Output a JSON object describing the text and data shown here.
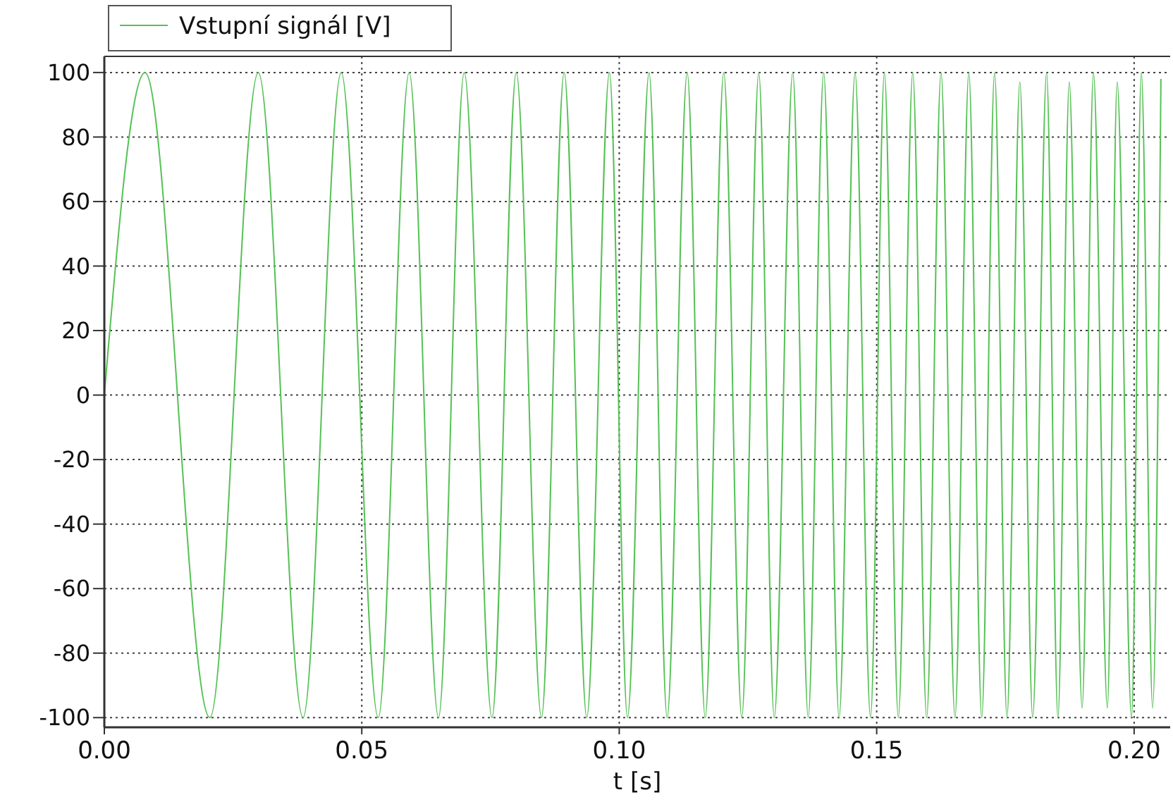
{
  "chart_data": {
    "type": "line",
    "xlabel": "t [s]",
    "xlim": [
      0,
      0.207
    ],
    "ylim": [
      -103,
      105
    ],
    "xticks": [
      {
        "value": 0,
        "label": "0.00"
      },
      {
        "value": 0.05,
        "label": "0.05"
      },
      {
        "value": 0.1,
        "label": "0.10"
      },
      {
        "value": 0.15,
        "label": "0.15"
      },
      {
        "value": 0.2,
        "label": "0.20"
      }
    ],
    "yticks": [
      -100,
      -80,
      -60,
      -40,
      -20,
      0,
      20,
      40,
      60,
      80,
      100
    ],
    "grid": true,
    "legend": "top left",
    "marker": "none",
    "line_style": "solid",
    "series": [
      {
        "name": "Vstupní signál [V]",
        "color": "#55c155",
        "x": [
          0,
          0.0079,
          0.0205,
          0.0299,
          0.0386,
          0.046,
          0.0532,
          0.0592,
          0.0649,
          0.0699,
          0.0753,
          0.08,
          0.0849,
          0.0893,
          0.0937,
          0.0981,
          0.1016,
          0.1058,
          0.1093,
          0.1132,
          0.1167,
          0.1203,
          0.1238,
          0.1271,
          0.1301,
          0.1337,
          0.1367,
          0.1397,
          0.1427,
          0.1458,
          0.1488,
          0.1515,
          0.1542,
          0.157,
          0.1597,
          0.1625,
          0.1652,
          0.1679,
          0.1704,
          0.1729,
          0.1753,
          0.1778,
          0.1803,
          0.183,
          0.1852,
          0.1874,
          0.1899,
          0.1921,
          0.1948,
          0.1967,
          0.1995,
          0.2014,
          0.2036,
          0.2052
        ],
        "values": [
          0,
          100,
          -100,
          100,
          -100,
          100,
          -100,
          100,
          -100,
          100,
          -100,
          100,
          -100,
          100,
          -100,
          100,
          -100,
          100,
          -100,
          100,
          -100,
          100,
          -100,
          100,
          -100,
          100,
          -100,
          100,
          -100,
          100,
          -100,
          100,
          -100,
          100,
          -100,
          100,
          -100,
          100,
          -100,
          100,
          -100,
          97,
          -100,
          100,
          -100,
          97,
          -97,
          100,
          -97,
          97,
          -100,
          100,
          -97,
          98
        ]
      }
    ]
  }
}
